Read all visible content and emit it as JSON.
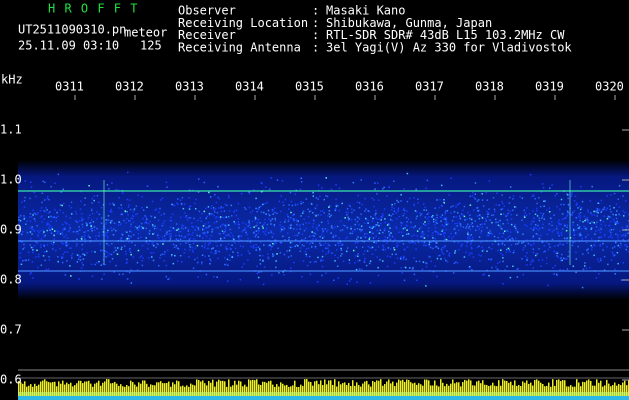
{
  "header": {
    "program": "H R O F F T",
    "file": "UT2511090310.pn",
    "mode": "meteor",
    "datetime": "25.11.09 03:10",
    "count": "125",
    "separator": ":",
    "fields": [
      {
        "label": "Observer",
        "value": "Masaki Kano"
      },
      {
        "label": "Receiving Location",
        "value": "Shibukawa, Gunma, Japan"
      },
      {
        "label": "Receiver",
        "value": "RTL-SDR SDR# 43dB L15 103.2MHz CW"
      },
      {
        "label": "Receiving Antenna",
        "value": "3el Yagi(V) Az 330 for Vladivostok"
      }
    ]
  },
  "axis": {
    "unit": "kHz",
    "y_labels": [
      "1.1",
      "1.0",
      "0.9",
      "0.8",
      "0.7",
      "0.6"
    ],
    "time_labels": [
      "0311",
      "0312",
      "0313",
      "0314",
      "0315",
      "0316",
      "0317",
      "0318",
      "0319",
      "0320"
    ]
  }
}
